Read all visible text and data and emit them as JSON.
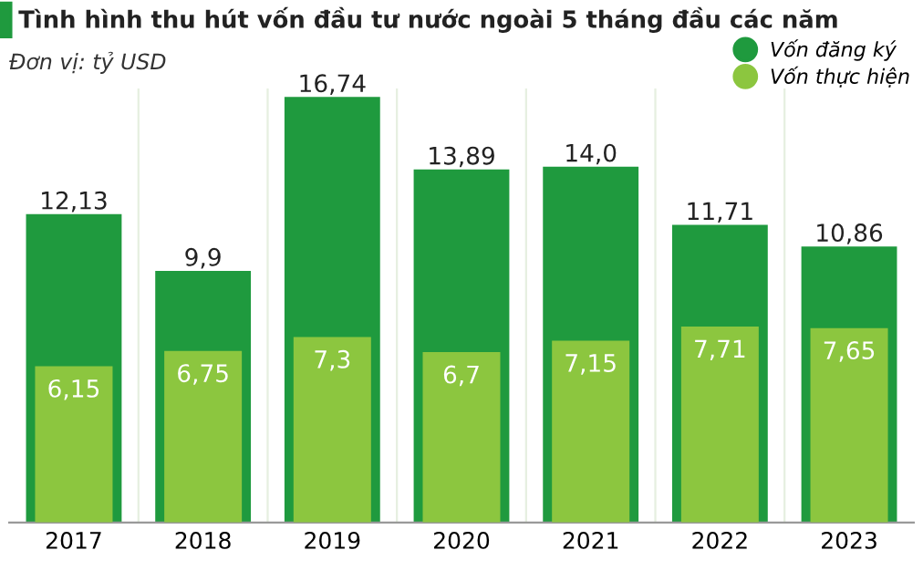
{
  "chart_data": {
    "type": "bar",
    "title": "Tình hình thu hút vốn đầu tư nước ngoài 5 tháng đầu các năm",
    "subtitle": "Đơn vị: tỷ USD",
    "categories": [
      "2017",
      "2018",
      "2019",
      "2020",
      "2021",
      "2022",
      "2023"
    ],
    "series": [
      {
        "name": "Vốn đăng ký",
        "color": "#1f9a3e",
        "values": [
          12.13,
          9.9,
          16.74,
          13.89,
          14.0,
          11.71,
          10.86
        ],
        "value_labels": [
          "12,13",
          "9,9",
          "16,74",
          "13,89",
          "14,0",
          "11,71",
          "10,86"
        ]
      },
      {
        "name": "Vốn thực hiện",
        "color": "#8cc63f",
        "values": [
          6.15,
          6.75,
          7.3,
          6.7,
          7.15,
          7.71,
          7.65
        ],
        "value_labels": [
          "6,15",
          "6,75",
          "7,3",
          "6,7",
          "7,15",
          "7,71",
          "7,65"
        ]
      }
    ],
    "legend": "top right"
  }
}
